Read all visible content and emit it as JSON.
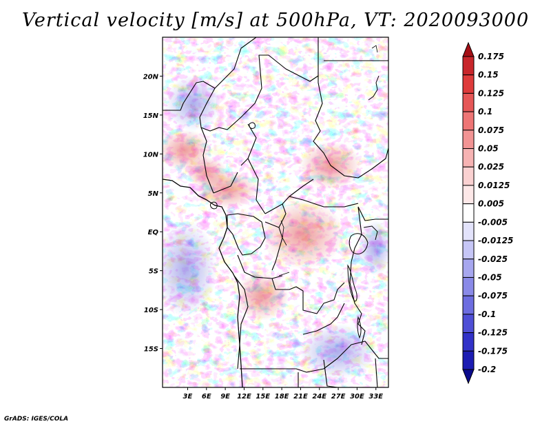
{
  "title": "Vertical velocity [m/s] at 500hPa, VT: 2020093000",
  "credit": "GrADS: IGES/COLA",
  "map": {
    "lon_range": [
      -1,
      35
    ],
    "lat_range": [
      -20,
      25
    ],
    "lon_ticks": [
      {
        "value": 3,
        "label": "3E"
      },
      {
        "value": 6,
        "label": "6E"
      },
      {
        "value": 9,
        "label": "9E"
      },
      {
        "value": 12,
        "label": "12E"
      },
      {
        "value": 15,
        "label": "15E"
      },
      {
        "value": 18,
        "label": "18E"
      },
      {
        "value": 21,
        "label": "21E"
      },
      {
        "value": 24,
        "label": "24E"
      },
      {
        "value": 27,
        "label": "27E"
      },
      {
        "value": 30,
        "label": "30E"
      },
      {
        "value": 33,
        "label": "33E"
      }
    ],
    "lat_ticks": [
      {
        "value": 20,
        "label": "20N"
      },
      {
        "value": 15,
        "label": "15N"
      },
      {
        "value": 10,
        "label": "10N"
      },
      {
        "value": 5,
        "label": "5N"
      },
      {
        "value": 0,
        "label": "EQ"
      },
      {
        "value": -5,
        "label": "5S"
      },
      {
        "value": -10,
        "label": "10S"
      },
      {
        "value": -15,
        "label": "15S"
      }
    ]
  },
  "colorbar": {
    "levels": [
      "0.175",
      "0.15",
      "0.125",
      "0.1",
      "0.075",
      "0.05",
      "0.025",
      "0.0125",
      "0.005",
      "-0.005",
      "-0.0125",
      "-0.025",
      "-0.05",
      "-0.075",
      "-0.1",
      "-0.125",
      "-0.175",
      "-0.2"
    ],
    "colors": [
      "#a50f15",
      "#c8262b",
      "#de3b3b",
      "#e65757",
      "#ee7575",
      "#f29494",
      "#f6b3b3",
      "#fad1d1",
      "#fde8e8",
      "#ffffff",
      "#e3e3fb",
      "#c6c6f6",
      "#a7a7ef",
      "#8a8ae8",
      "#6d6de0",
      "#4f4fd6",
      "#3232c8",
      "#1c1cb2",
      "#0a0a8c"
    ]
  }
}
